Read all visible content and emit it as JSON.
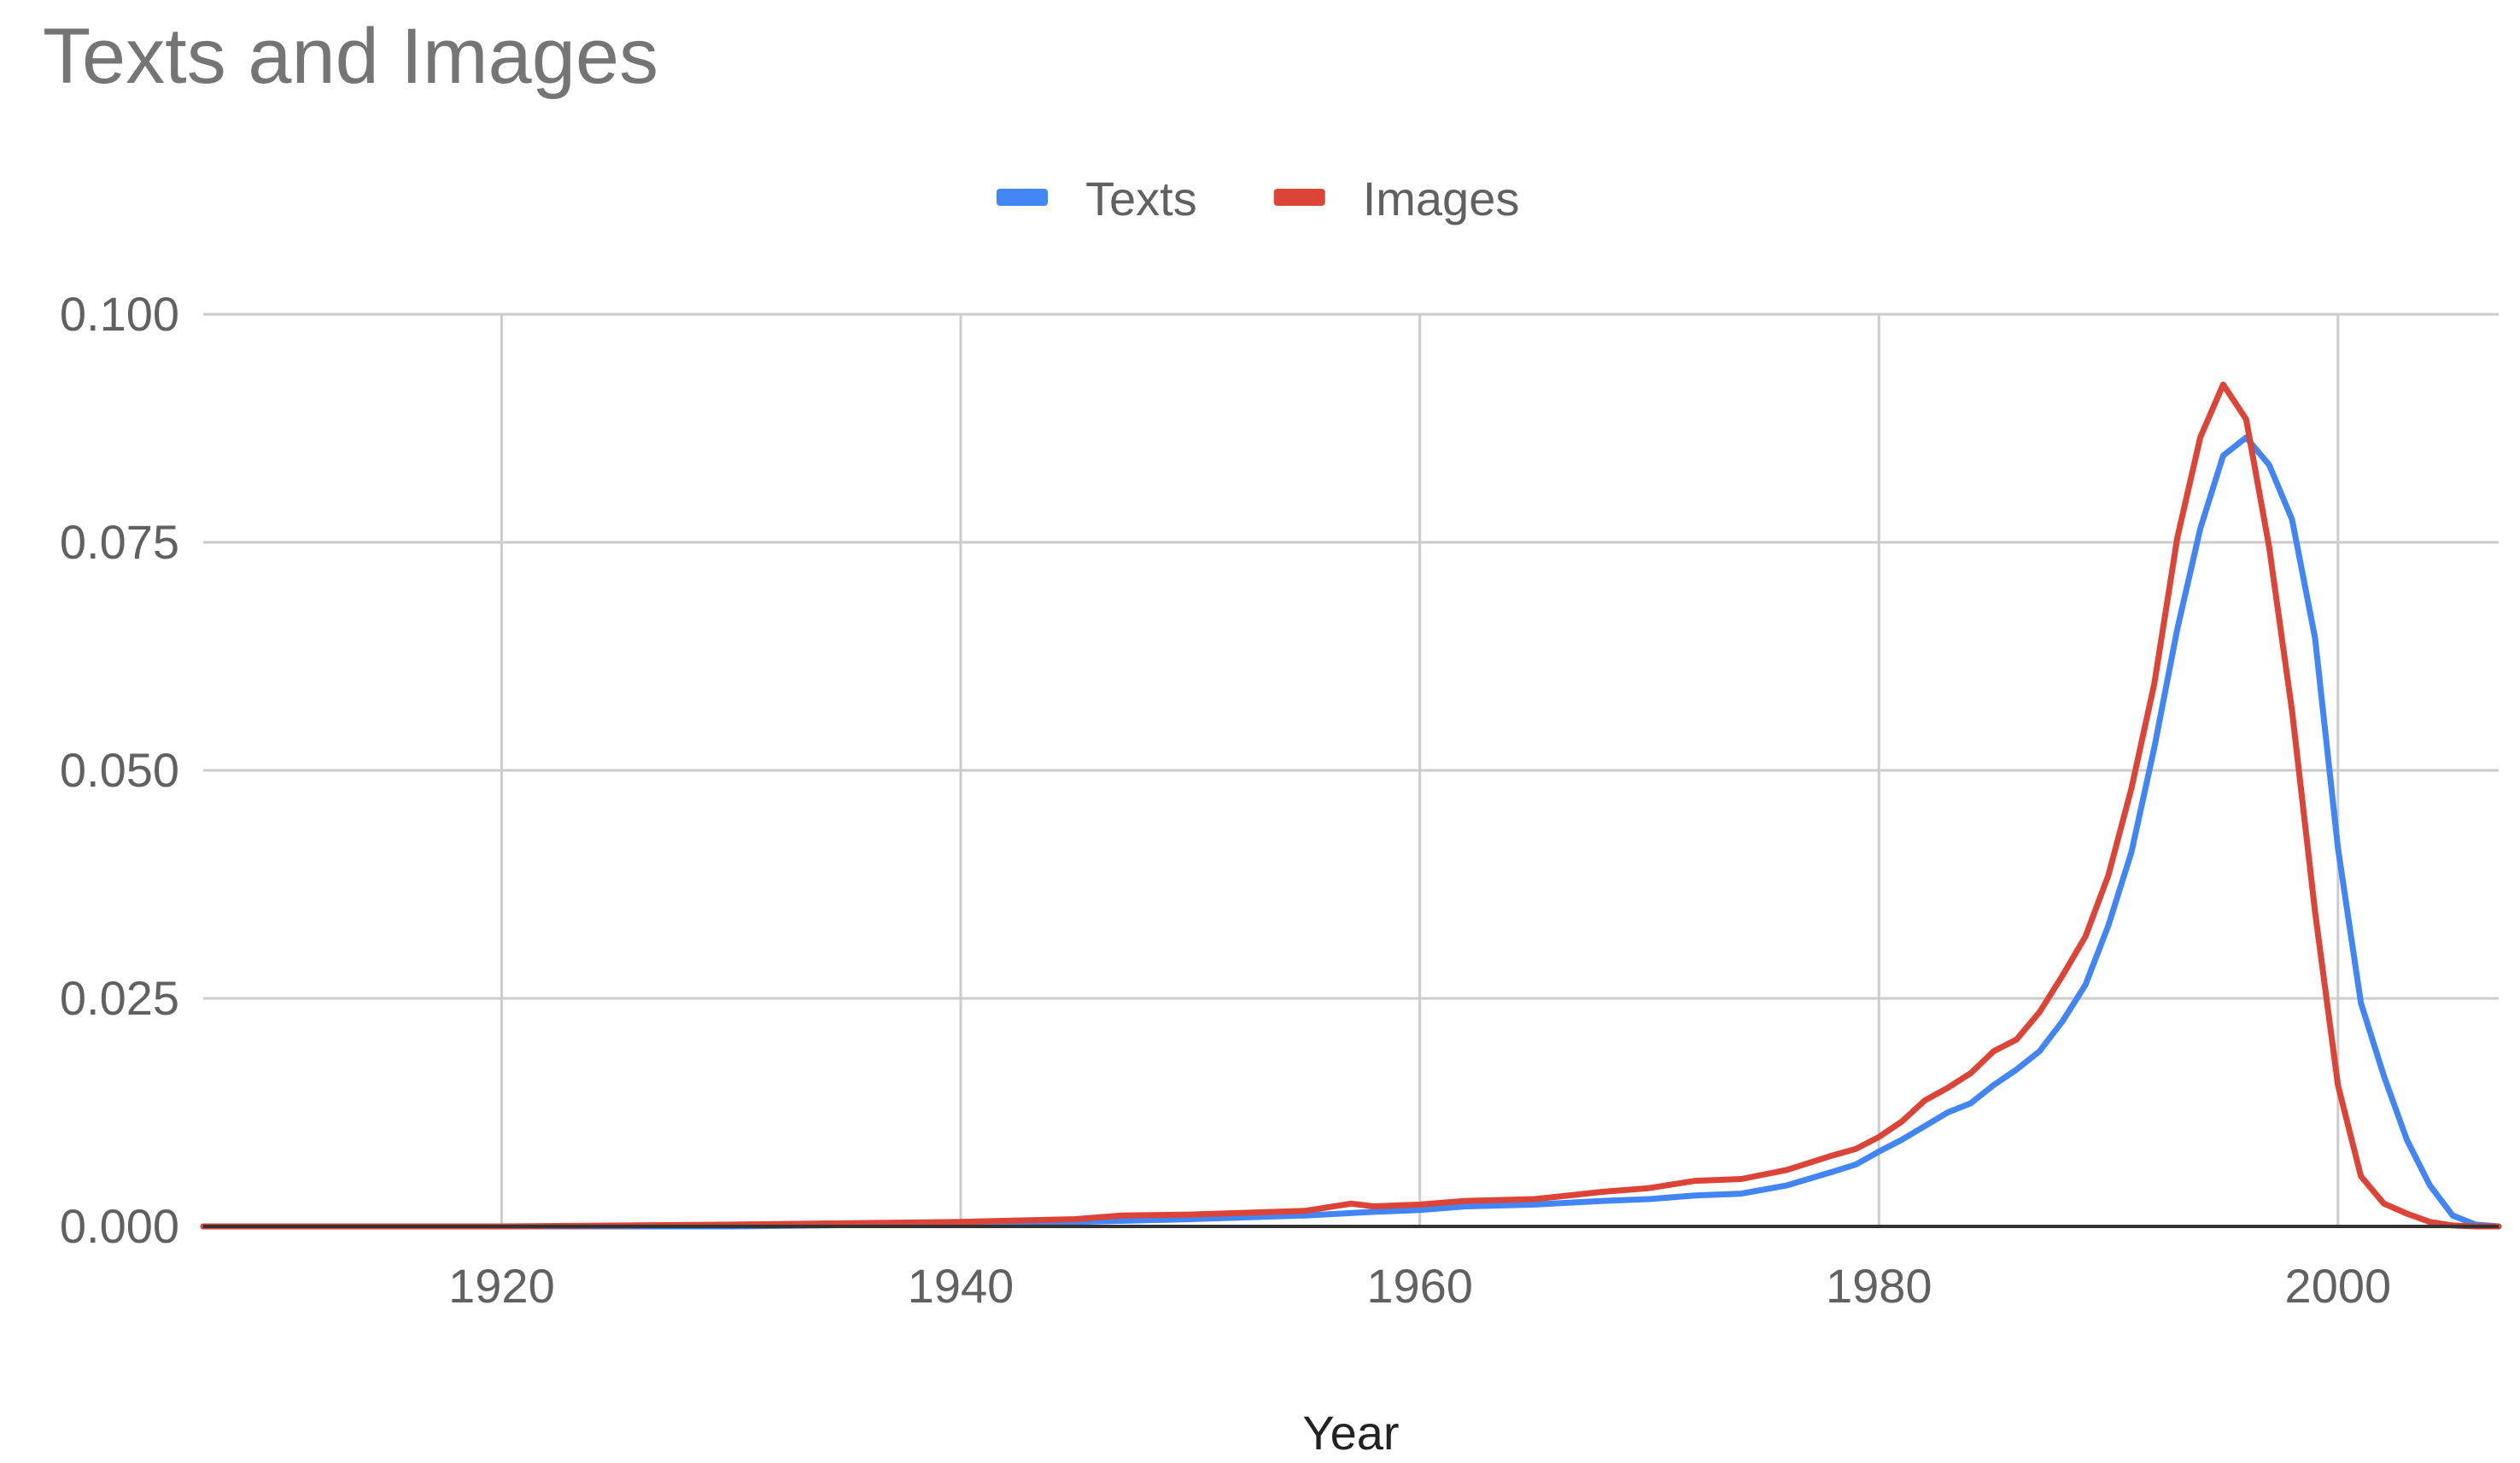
{
  "chart_data": {
    "type": "line",
    "title": "Texts and Images",
    "xlabel": "Year",
    "ylabel": "",
    "xlim": [
      1907,
      2007
    ],
    "ylim": [
      0,
      0.1
    ],
    "xticks": [
      "1920",
      "1940",
      "1960",
      "1980",
      "2000"
    ],
    "yticks": [
      "0.000",
      "0.025",
      "0.050",
      "0.075",
      "0.100"
    ],
    "grid": true,
    "legend_position": "top-center",
    "series": [
      {
        "name": "Texts",
        "color": "#4285f4",
        "x": [
          1907,
          1920,
          1930,
          1940,
          1945,
          1950,
          1955,
          1958,
          1960,
          1962,
          1965,
          1968,
          1970,
          1972,
          1974,
          1976,
          1978,
          1979,
          1980,
          1981,
          1982,
          1983,
          1984,
          1985,
          1986,
          1987,
          1988,
          1989,
          1990,
          1991,
          1992,
          1993,
          1994,
          1995,
          1996,
          1997,
          1998,
          1999,
          2000,
          2001,
          2002,
          2003,
          2004,
          2005,
          2006,
          2007
        ],
        "values": [
          0.0,
          0.0,
          0.0,
          0.0003,
          0.0005,
          0.0008,
          0.0012,
          0.0016,
          0.0018,
          0.0022,
          0.0024,
          0.0028,
          0.003,
          0.0034,
          0.0036,
          0.0045,
          0.006,
          0.0068,
          0.0082,
          0.0095,
          0.011,
          0.0125,
          0.0135,
          0.0155,
          0.0172,
          0.0192,
          0.0225,
          0.0265,
          0.033,
          0.041,
          0.0525,
          0.0655,
          0.0765,
          0.0845,
          0.0865,
          0.0835,
          0.0775,
          0.0645,
          0.0415,
          0.0245,
          0.0165,
          0.0095,
          0.0045,
          0.0012,
          0.0002,
          0.0
        ]
      },
      {
        "name": "Images",
        "color": "#db4437",
        "x": [
          1907,
          1920,
          1930,
          1940,
          1945,
          1947,
          1950,
          1955,
          1957,
          1958,
          1960,
          1962,
          1965,
          1968,
          1970,
          1972,
          1974,
          1976,
          1978,
          1979,
          1980,
          1981,
          1982,
          1983,
          1984,
          1985,
          1986,
          1987,
          1988,
          1989,
          1990,
          1991,
          1992,
          1993,
          1994,
          1995,
          1996,
          1997,
          1998,
          1999,
          2000,
          2001,
          2002,
          2003,
          2004,
          2005,
          2006,
          2007
        ],
        "values": [
          0.0,
          0.0,
          0.0002,
          0.0005,
          0.0008,
          0.0012,
          0.0013,
          0.0017,
          0.0025,
          0.0022,
          0.0024,
          0.0028,
          0.003,
          0.0038,
          0.0042,
          0.005,
          0.0052,
          0.0062,
          0.0078,
          0.0085,
          0.0098,
          0.0115,
          0.0138,
          0.0152,
          0.0168,
          0.0192,
          0.0205,
          0.0235,
          0.0275,
          0.0318,
          0.0385,
          0.048,
          0.0595,
          0.0755,
          0.0865,
          0.0923,
          0.0885,
          0.0745,
          0.0565,
          0.0345,
          0.0155,
          0.0055,
          0.0025,
          0.0014,
          0.0005,
          0.0001,
          0.0,
          0.0
        ]
      }
    ]
  }
}
